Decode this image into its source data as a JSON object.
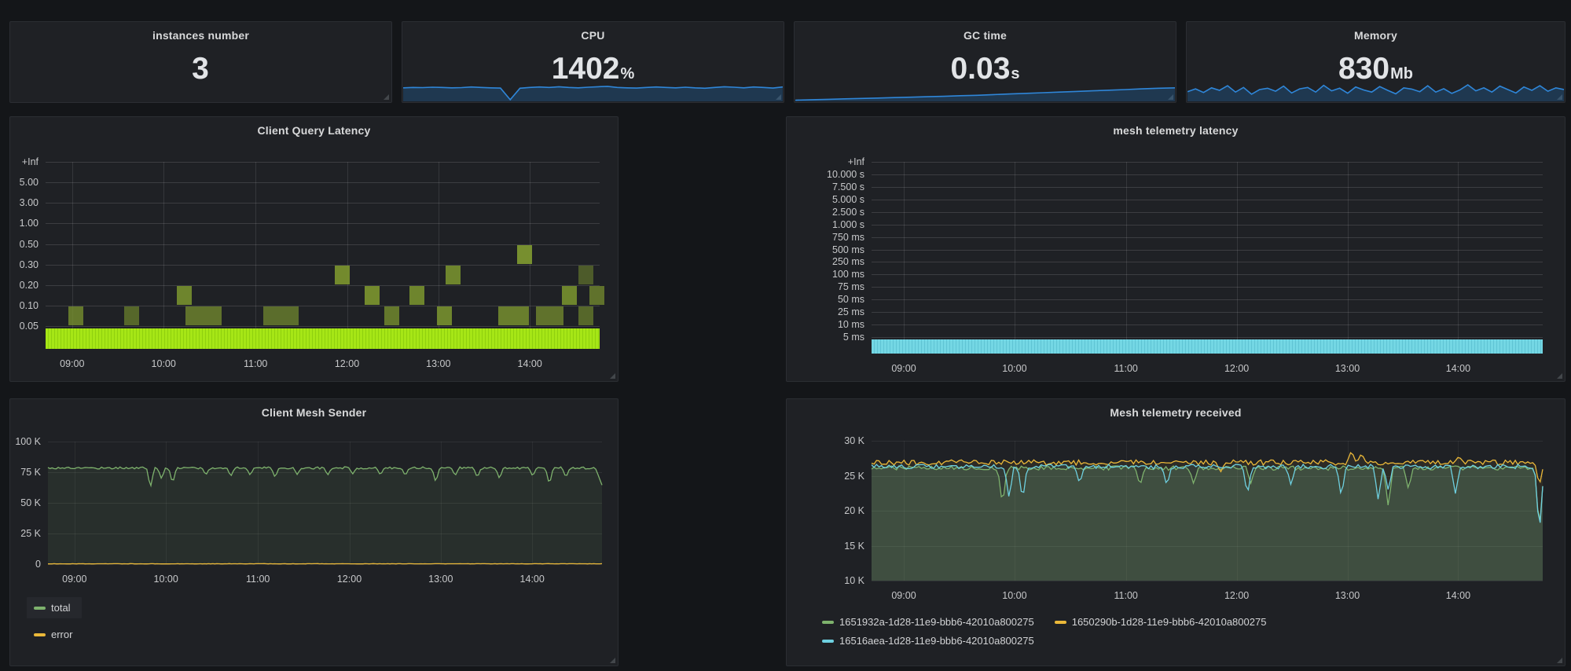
{
  "theme": {
    "page_bg": "#141619",
    "panel_bg": "#1f2125",
    "panel_border": "#2b2e33",
    "title_color": "#d8d9da",
    "value_color": "#e2e4e7",
    "tick_color": "#c7c8ca",
    "sparkline_color": "#2f86d8",
    "sparkline_fill": "rgba(31,120,193,0.28)"
  },
  "time_axis": [
    "09:00",
    "10:00",
    "11:00",
    "12:00",
    "13:00",
    "14:00"
  ],
  "stats": [
    {
      "title": "instances number",
      "value": "3",
      "unit": "",
      "sparkline": null
    },
    {
      "title": "CPU",
      "value": "1402",
      "unit": "%",
      "sparkline": [
        60,
        62,
        61,
        63,
        62,
        60,
        61,
        64,
        62,
        60,
        59,
        4,
        58,
        62,
        64,
        62,
        65,
        62,
        60,
        63,
        65,
        67,
        62,
        60,
        59,
        62,
        64,
        62,
        60,
        63,
        60,
        58,
        62,
        65,
        63,
        60,
        64,
        62,
        59,
        64
      ]
    },
    {
      "title": "GC time",
      "value": "0.03",
      "unit": "s",
      "sparkline": [
        2,
        4,
        6,
        8,
        10,
        12,
        14,
        16,
        18,
        20,
        23,
        25,
        28,
        31,
        34,
        37,
        40,
        43,
        46,
        49,
        52,
        55,
        58,
        60
      ]
    },
    {
      "title": "Memory",
      "value": "830",
      "unit": "Mb",
      "sparkline": [
        42,
        55,
        38,
        60,
        48,
        70,
        40,
        62,
        30,
        52,
        58,
        44,
        68,
        36,
        55,
        62,
        40,
        72,
        46,
        58,
        35,
        64,
        50,
        40,
        66,
        48,
        32,
        60,
        54,
        42,
        70,
        40,
        56,
        34,
        50,
        74,
        46,
        60,
        40,
        68,
        52,
        36,
        64,
        48,
        70,
        44,
        60,
        52
      ]
    }
  ],
  "heatmaps": [
    {
      "title": "Client Query Latency",
      "y_labels": [
        "+Inf",
        "5.00",
        "3.00",
        "1.00",
        "0.50",
        "0.30",
        "0.20",
        "0.10",
        "0.05"
      ],
      "band_color": "#a6e616",
      "band_color2": "#8fd00e",
      "cell_rgb": "124,150,47",
      "cells": [
        {
          "x": 0.055,
          "row": 0,
          "a": 0.75
        },
        {
          "x": 0.155,
          "row": 0,
          "a": 0.6
        },
        {
          "x": 0.285,
          "row": 0,
          "w": 0.065,
          "a": 0.7
        },
        {
          "x": 0.425,
          "row": 0,
          "w": 0.065,
          "a": 0.65
        },
        {
          "x": 0.625,
          "row": 0,
          "a": 0.75
        },
        {
          "x": 0.72,
          "row": 0,
          "a": 0.85
        },
        {
          "x": 0.845,
          "row": 0,
          "w": 0.055,
          "a": 0.8
        },
        {
          "x": 0.91,
          "row": 0,
          "w": 0.05,
          "a": 0.7
        },
        {
          "x": 0.975,
          "row": 0,
          "a": 0.6
        },
        {
          "x": 0.25,
          "row": 1,
          "a": 0.85
        },
        {
          "x": 0.59,
          "row": 1,
          "a": 0.9
        },
        {
          "x": 0.67,
          "row": 1,
          "a": 0.85
        },
        {
          "x": 0.945,
          "row": 1,
          "a": 0.85
        },
        {
          "x": 0.995,
          "row": 1,
          "a": 0.7
        },
        {
          "x": 0.535,
          "row": 2,
          "a": 0.9
        },
        {
          "x": 0.735,
          "row": 2,
          "a": 0.85
        },
        {
          "x": 0.975,
          "row": 2,
          "a": 0.5
        },
        {
          "x": 0.865,
          "row": 3,
          "a": 0.95
        }
      ]
    },
    {
      "title": "mesh telemetry latency",
      "y_labels": [
        "+Inf",
        "10.000 s",
        "7.500 s",
        "5.000 s",
        "2.500 s",
        "1.000 s",
        "750 ms",
        "500 ms",
        "250 ms",
        "100 ms",
        "75 ms",
        "50 ms",
        "25 ms",
        "10 ms",
        "5 ms"
      ],
      "band_color": "#74d7e4",
      "band_color2": "#5fc4d4",
      "cell_rgb": "110,208,224",
      "cells": []
    }
  ],
  "graphs": [
    {
      "title": "Client Mesh Sender",
      "y_labels": [
        "100 K",
        "75 K",
        "50 K",
        "25 K",
        "0"
      ],
      "ylim": [
        0,
        100000
      ],
      "series": [
        {
          "name": "total",
          "color": "#7eb26d",
          "fill": 0.1,
          "base": 78500,
          "noise": 900,
          "dips": [
            {
              "x": 0.185,
              "v": 62000
            },
            {
              "x": 0.205,
              "v": 69500
            },
            {
              "x": 0.225,
              "v": 65500
            },
            {
              "x": 0.285,
              "v": 72500
            },
            {
              "x": 0.33,
              "v": 71500
            },
            {
              "x": 0.365,
              "v": 72500
            },
            {
              "x": 0.41,
              "v": 70500
            },
            {
              "x": 0.45,
              "v": 73000
            },
            {
              "x": 0.505,
              "v": 72500
            },
            {
              "x": 0.55,
              "v": 73500
            },
            {
              "x": 0.6,
              "v": 72500
            },
            {
              "x": 0.645,
              "v": 72000
            },
            {
              "x": 0.7,
              "v": 66500
            },
            {
              "x": 0.735,
              "v": 72000
            },
            {
              "x": 0.775,
              "v": 70500
            },
            {
              "x": 0.815,
              "v": 69500
            },
            {
              "x": 0.875,
              "v": 71500
            },
            {
              "x": 0.905,
              "v": 64500
            },
            {
              "x": 0.935,
              "v": 70500
            },
            {
              "x": 1.0,
              "v": 64500,
              "w": 0.012
            }
          ]
        },
        {
          "name": "error",
          "color": "#eab839",
          "fill": 0,
          "base": 300,
          "noise": 120,
          "dips": []
        }
      ]
    },
    {
      "title": "Mesh telemetry received",
      "y_labels": [
        "30 K",
        "25 K",
        "20 K",
        "15 K",
        "10 K"
      ],
      "ylim": [
        10000,
        30000
      ],
      "series": [
        {
          "name": "1651932a-1d28-11e9-bbb6-42010a800275",
          "color": "#7eb26d",
          "fill": 0.16,
          "base": 26100,
          "noise": 320,
          "dips": [
            {
              "x": 0.195,
              "v": 20700
            },
            {
              "x": 0.4,
              "v": 23500
            },
            {
              "x": 0.48,
              "v": 23800
            },
            {
              "x": 0.565,
              "v": 23900
            },
            {
              "x": 0.77,
              "v": 20400
            },
            {
              "x": 0.8,
              "v": 23000
            },
            {
              "x": 0.995,
              "v": 17000
            }
          ]
        },
        {
          "name": "1650290b-1d28-11e9-bbb6-42010a800275",
          "color": "#eab839",
          "fill": 0.07,
          "base": 26900,
          "noise": 380,
          "dips": [
            {
              "x": 0.52,
              "v": 25500
            },
            {
              "x": 0.715,
              "v": 28600
            },
            {
              "x": 0.73,
              "v": 28200
            },
            {
              "x": 0.875,
              "v": 27800
            },
            {
              "x": 0.995,
              "v": 23500
            }
          ]
        },
        {
          "name": "16516aea-1d28-11e9-bbb6-42010a800275",
          "color": "#6ed0e0",
          "fill": 0.09,
          "base": 26300,
          "noise": 330,
          "dips": [
            {
              "x": 0.205,
              "v": 21700
            },
            {
              "x": 0.225,
              "v": 21400
            },
            {
              "x": 0.31,
              "v": 23800
            },
            {
              "x": 0.44,
              "v": 23500
            },
            {
              "x": 0.56,
              "v": 22200
            },
            {
              "x": 0.625,
              "v": 23600
            },
            {
              "x": 0.7,
              "v": 21900
            },
            {
              "x": 0.755,
              "v": 21400
            },
            {
              "x": 0.77,
              "v": 22800
            },
            {
              "x": 0.87,
              "v": 22400
            },
            {
              "x": 0.995,
              "v": 16500
            }
          ]
        }
      ]
    }
  ]
}
